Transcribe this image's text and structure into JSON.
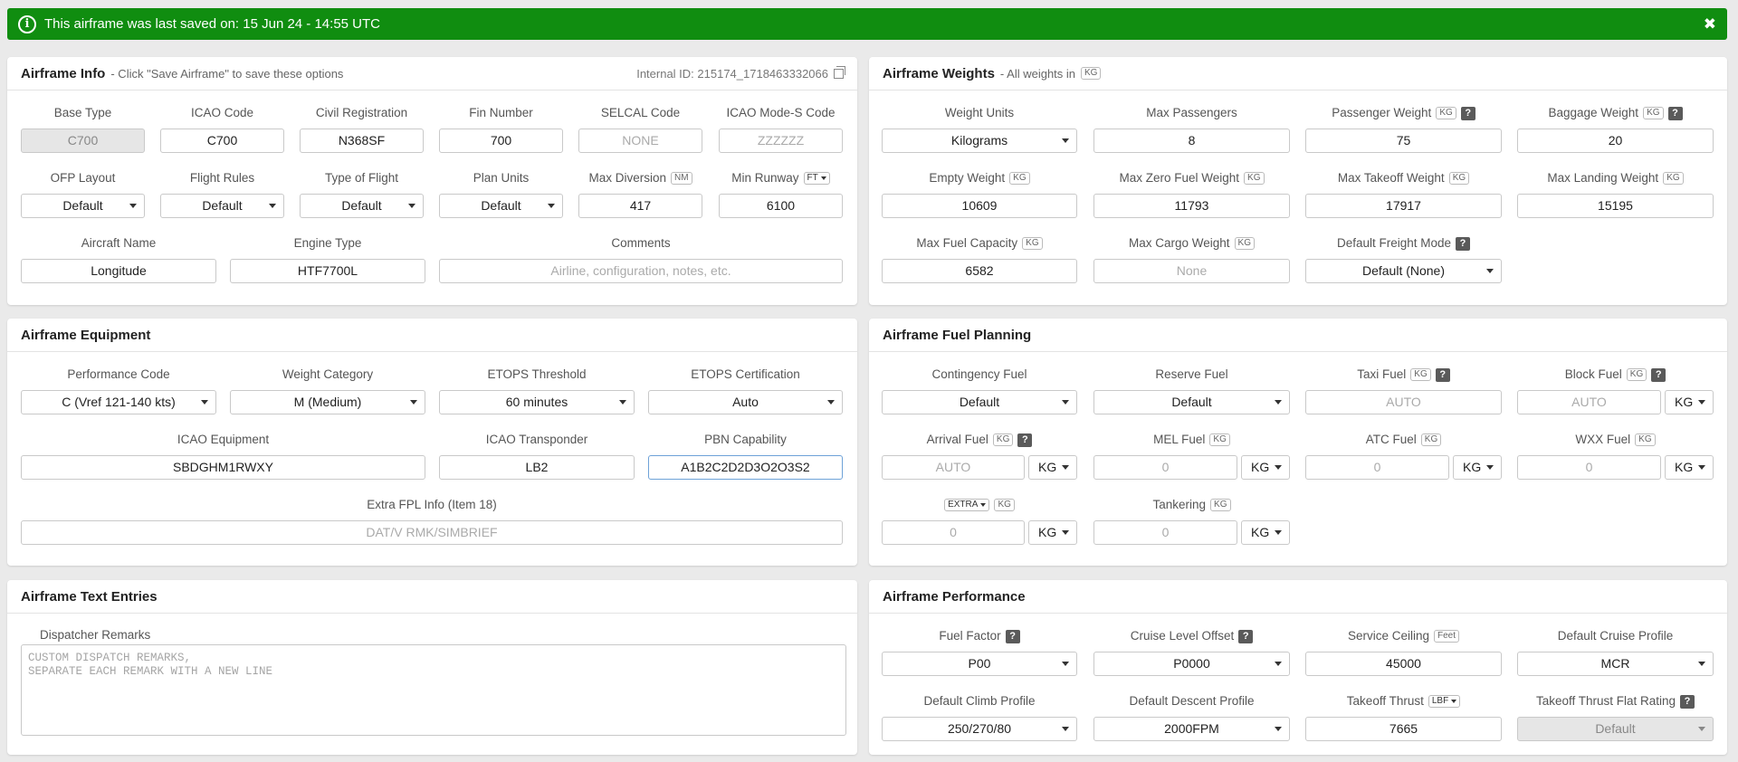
{
  "banner": {
    "message": "This airframe was last saved on: 15 Jun 24 - 14:55 UTC",
    "info_icon": "i",
    "close_icon": "✖",
    "color": "#108d10"
  },
  "info": {
    "title": "Airframe Info",
    "subtitle": "- Click \"Save Airframe\" to save these options",
    "internal_id": "Internal ID: 215174_1718463332066",
    "base_type": {
      "label": "Base Type",
      "value": "C700"
    },
    "icao_code": {
      "label": "ICAO Code",
      "value": "C700"
    },
    "civil_reg": {
      "label": "Civil Registration",
      "value": "N368SF"
    },
    "fin_number": {
      "label": "Fin Number",
      "value": "700"
    },
    "selcal": {
      "label": "SELCAL Code",
      "placeholder": "NONE"
    },
    "modes": {
      "label": "ICAO Mode-S Code",
      "placeholder": "ZZZZZZ"
    },
    "ofp_layout": {
      "label": "OFP Layout",
      "value": "Default"
    },
    "flight_rules": {
      "label": "Flight Rules",
      "value": "Default"
    },
    "flight_type": {
      "label": "Type of Flight",
      "value": "Default"
    },
    "plan_units": {
      "label": "Plan Units",
      "value": "Default"
    },
    "max_diversion": {
      "label": "Max Diversion",
      "unit": "NM",
      "value": "417"
    },
    "min_runway": {
      "label": "Min Runway",
      "unit": "FT",
      "value": "6100"
    },
    "aircraft_name": {
      "label": "Aircraft Name",
      "value": "Longitude"
    },
    "engine_type": {
      "label": "Engine Type",
      "value": "HTF7700L"
    },
    "comments": {
      "label": "Comments",
      "placeholder": "Airline, configuration, notes, etc."
    }
  },
  "weights": {
    "title": "Airframe Weights",
    "subtitle": "- All weights in",
    "subtitle_unit": "KG",
    "weight_units": {
      "label": "Weight Units",
      "value": "Kilograms"
    },
    "max_pax": {
      "label": "Max Passengers",
      "value": "8"
    },
    "pax_weight": {
      "label": "Passenger Weight",
      "unit": "KG",
      "value": "75"
    },
    "bag_weight": {
      "label": "Baggage Weight",
      "unit": "KG",
      "value": "20"
    },
    "empty_weight": {
      "label": "Empty Weight",
      "unit": "KG",
      "value": "10609"
    },
    "mzfw": {
      "label": "Max Zero Fuel Weight",
      "unit": "KG",
      "value": "11793"
    },
    "mtow": {
      "label": "Max Takeoff Weight",
      "unit": "KG",
      "value": "17917"
    },
    "mlw": {
      "label": "Max Landing Weight",
      "unit": "KG",
      "value": "15195"
    },
    "max_fuel": {
      "label": "Max Fuel Capacity",
      "unit": "KG",
      "value": "6582"
    },
    "max_cargo": {
      "label": "Max Cargo Weight",
      "unit": "KG",
      "placeholder": "None"
    },
    "freight_mode": {
      "label": "Default Freight Mode",
      "value": "Default (None)"
    }
  },
  "equipment": {
    "title": "Airframe Equipment",
    "perf_code": {
      "label": "Performance Code",
      "value": "C (Vref 121-140 kts)"
    },
    "weight_cat": {
      "label": "Weight Category",
      "value": "M (Medium)"
    },
    "etops_threshold": {
      "label": "ETOPS Threshold",
      "value": "60 minutes"
    },
    "etops_cert": {
      "label": "ETOPS Certification",
      "value": "Auto"
    },
    "icao_equipment": {
      "label": "ICAO Equipment",
      "value": "SBDGHM1RWXY"
    },
    "icao_transponder": {
      "label": "ICAO Transponder",
      "value": "LB2"
    },
    "pbn": {
      "label": "PBN Capability",
      "value": "A1B2C2D2D3O2O3S2"
    },
    "extra_fpl": {
      "label": "Extra FPL Info (Item 18)",
      "placeholder": "DAT/V RMK/SIMBRIEF"
    }
  },
  "fuel": {
    "title": "Airframe Fuel Planning",
    "contingency": {
      "label": "Contingency Fuel",
      "value": "Default"
    },
    "reserve": {
      "label": "Reserve Fuel",
      "value": "Default"
    },
    "taxi": {
      "label": "Taxi Fuel",
      "unit": "KG",
      "placeholder": "AUTO"
    },
    "block": {
      "label": "Block Fuel",
      "unit": "KG",
      "placeholder": "AUTO",
      "unit_select": "KG"
    },
    "arrival": {
      "label": "Arrival Fuel",
      "unit": "KG",
      "placeholder": "AUTO",
      "unit_select": "KG"
    },
    "mel": {
      "label": "MEL Fuel",
      "unit": "KG",
      "placeholder": "0",
      "unit_select": "KG"
    },
    "atc": {
      "label": "ATC Fuel",
      "unit": "KG",
      "placeholder": "0",
      "unit_select": "KG"
    },
    "wxx": {
      "label": "WXX Fuel",
      "unit": "KG",
      "placeholder": "0",
      "unit_select": "KG"
    },
    "extra": {
      "label_select": "EXTRA",
      "unit": "KG",
      "placeholder": "0",
      "unit_select": "KG"
    },
    "tankering": {
      "label": "Tankering",
      "unit": "KG",
      "placeholder": "0",
      "unit_select": "KG"
    }
  },
  "text": {
    "title": "Airframe Text Entries",
    "remarks_label": "Dispatcher Remarks",
    "remarks_placeholder": "CUSTOM DISPATCH REMARKS,\nSEPARATE EACH REMARK WITH A NEW LINE"
  },
  "perf": {
    "title": "Airframe Performance",
    "fuel_factor": {
      "label": "Fuel Factor",
      "value": "P00"
    },
    "cruise_offset": {
      "label": "Cruise Level Offset",
      "value": "P0000"
    },
    "ceiling": {
      "label": "Service Ceiling",
      "unit": "Feet",
      "value": "45000"
    },
    "cruise_profile": {
      "label": "Default Cruise Profile",
      "value": "MCR"
    },
    "climb_profile": {
      "label": "Default Climb Profile",
      "value": "250/270/80"
    },
    "descent_profile": {
      "label": "Default Descent Profile",
      "value": "2000FPM"
    },
    "takeoff_thrust": {
      "label": "Takeoff Thrust",
      "unit": "LBF",
      "value": "7665"
    },
    "flat_rating": {
      "label": "Takeoff Thrust Flat Rating",
      "value": "Default"
    }
  },
  "help_glyph": "?"
}
